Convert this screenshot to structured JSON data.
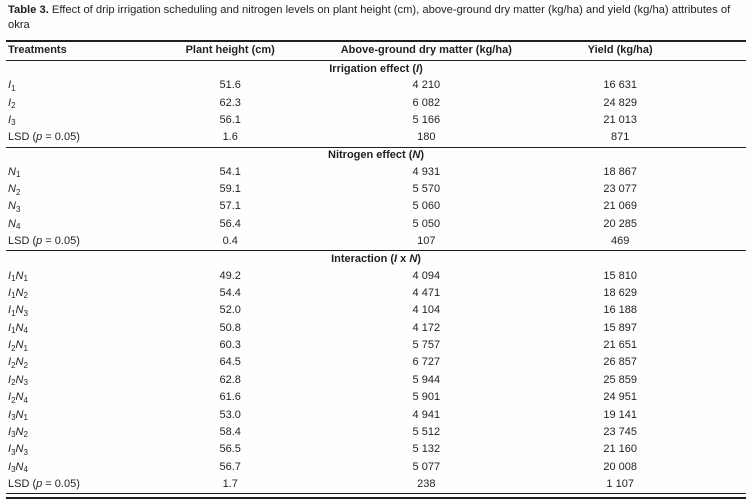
{
  "title": {
    "bold": "Table 3.",
    "rest": " Effect of drip irrigation scheduling and nitrogen levels on plant height (cm), above-ground dry matter (kg/ha) and yield (kg/ha) attributes of okra"
  },
  "table": {
    "columns": [
      "Treatments",
      "Plant height (cm)",
      "Above-ground dry matter (kg/ha)",
      "Yield (kg/ha)"
    ],
    "column_names": [
      "treatments",
      "plant-height",
      "dry-matter",
      "yield"
    ],
    "value_names": [
      "plant-height-value",
      "dry-matter-value",
      "yield-value"
    ],
    "sections": [
      {
        "header": "Irrigation effect (*I*)",
        "rows": [
          {
            "treatment": "*I*~1~",
            "values": [
              "51.6",
              "4 210",
              "16 631"
            ]
          },
          {
            "treatment": "*I*~2~",
            "values": [
              "62.3",
              "6 082",
              "24 829"
            ]
          },
          {
            "treatment": "*I*~3~",
            "values": [
              "56.1",
              "5 166",
              "21 013"
            ]
          },
          {
            "treatment": "LSD (*p* = 0.05)",
            "values": [
              "1.6",
              "180",
              "871"
            ]
          }
        ]
      },
      {
        "header": "Nitrogen effect (*N*)",
        "rows": [
          {
            "treatment": "*N*~1~",
            "values": [
              "54.1",
              "4 931",
              "18 867"
            ]
          },
          {
            "treatment": "*N*~2~",
            "values": [
              "59.1",
              "5 570",
              "23 077"
            ]
          },
          {
            "treatment": "*N*~3~",
            "values": [
              "57.1",
              "5 060",
              "21 069"
            ]
          },
          {
            "treatment": "*N*~4~",
            "values": [
              "56.4",
              "5 050",
              "20 285"
            ]
          },
          {
            "treatment": "LSD (*p* = 0.05)",
            "values": [
              "0.4",
              "107",
              "469"
            ]
          }
        ]
      },
      {
        "header": "Interaction (*I* x *N*)",
        "rows": [
          {
            "treatment": "*I*~1~*N*~1~",
            "values": [
              "49.2",
              "4 094",
              "15 810"
            ]
          },
          {
            "treatment": "*I*~1~*N*~2~",
            "values": [
              "54.4",
              "4 471",
              "18 629"
            ]
          },
          {
            "treatment": "*I*~1~*N*~3~",
            "values": [
              "52.0",
              "4 104",
              "16 188"
            ]
          },
          {
            "treatment": "*I*~1~*N*~4~",
            "values": [
              "50.8",
              "4 172",
              "15 897"
            ]
          },
          {
            "treatment": "*I*~2~*N*~1~",
            "values": [
              "60.3",
              "5 757",
              "21 651"
            ]
          },
          {
            "treatment": "*I*~2~*N*~2~",
            "values": [
              "64.5",
              "6 727",
              "26 857"
            ]
          },
          {
            "treatment": "*I*~2~*N*~3~",
            "values": [
              "62.8",
              "5 944",
              "25 859"
            ]
          },
          {
            "treatment": "*I*~2~*N*~4~",
            "values": [
              "61.6",
              "5 901",
              "24 951"
            ]
          },
          {
            "treatment": "*I*~3~*N*~1~",
            "values": [
              "53.0",
              "4 941",
              "19 141"
            ]
          },
          {
            "treatment": "*I*~3~*N*~2~",
            "values": [
              "58.4",
              "5 512",
              "23 745"
            ]
          },
          {
            "treatment": "*I*~3~*N*~3~",
            "values": [
              "56.5",
              "5 132",
              "21 160"
            ]
          },
          {
            "treatment": "*I*~3~*N*~4~",
            "values": [
              "56.7",
              "5 077",
              "20 008"
            ]
          },
          {
            "treatment": "LSD (*p* = 0.05)",
            "values": [
              "1.7",
              "238",
              "1 107"
            ]
          }
        ]
      }
    ]
  }
}
